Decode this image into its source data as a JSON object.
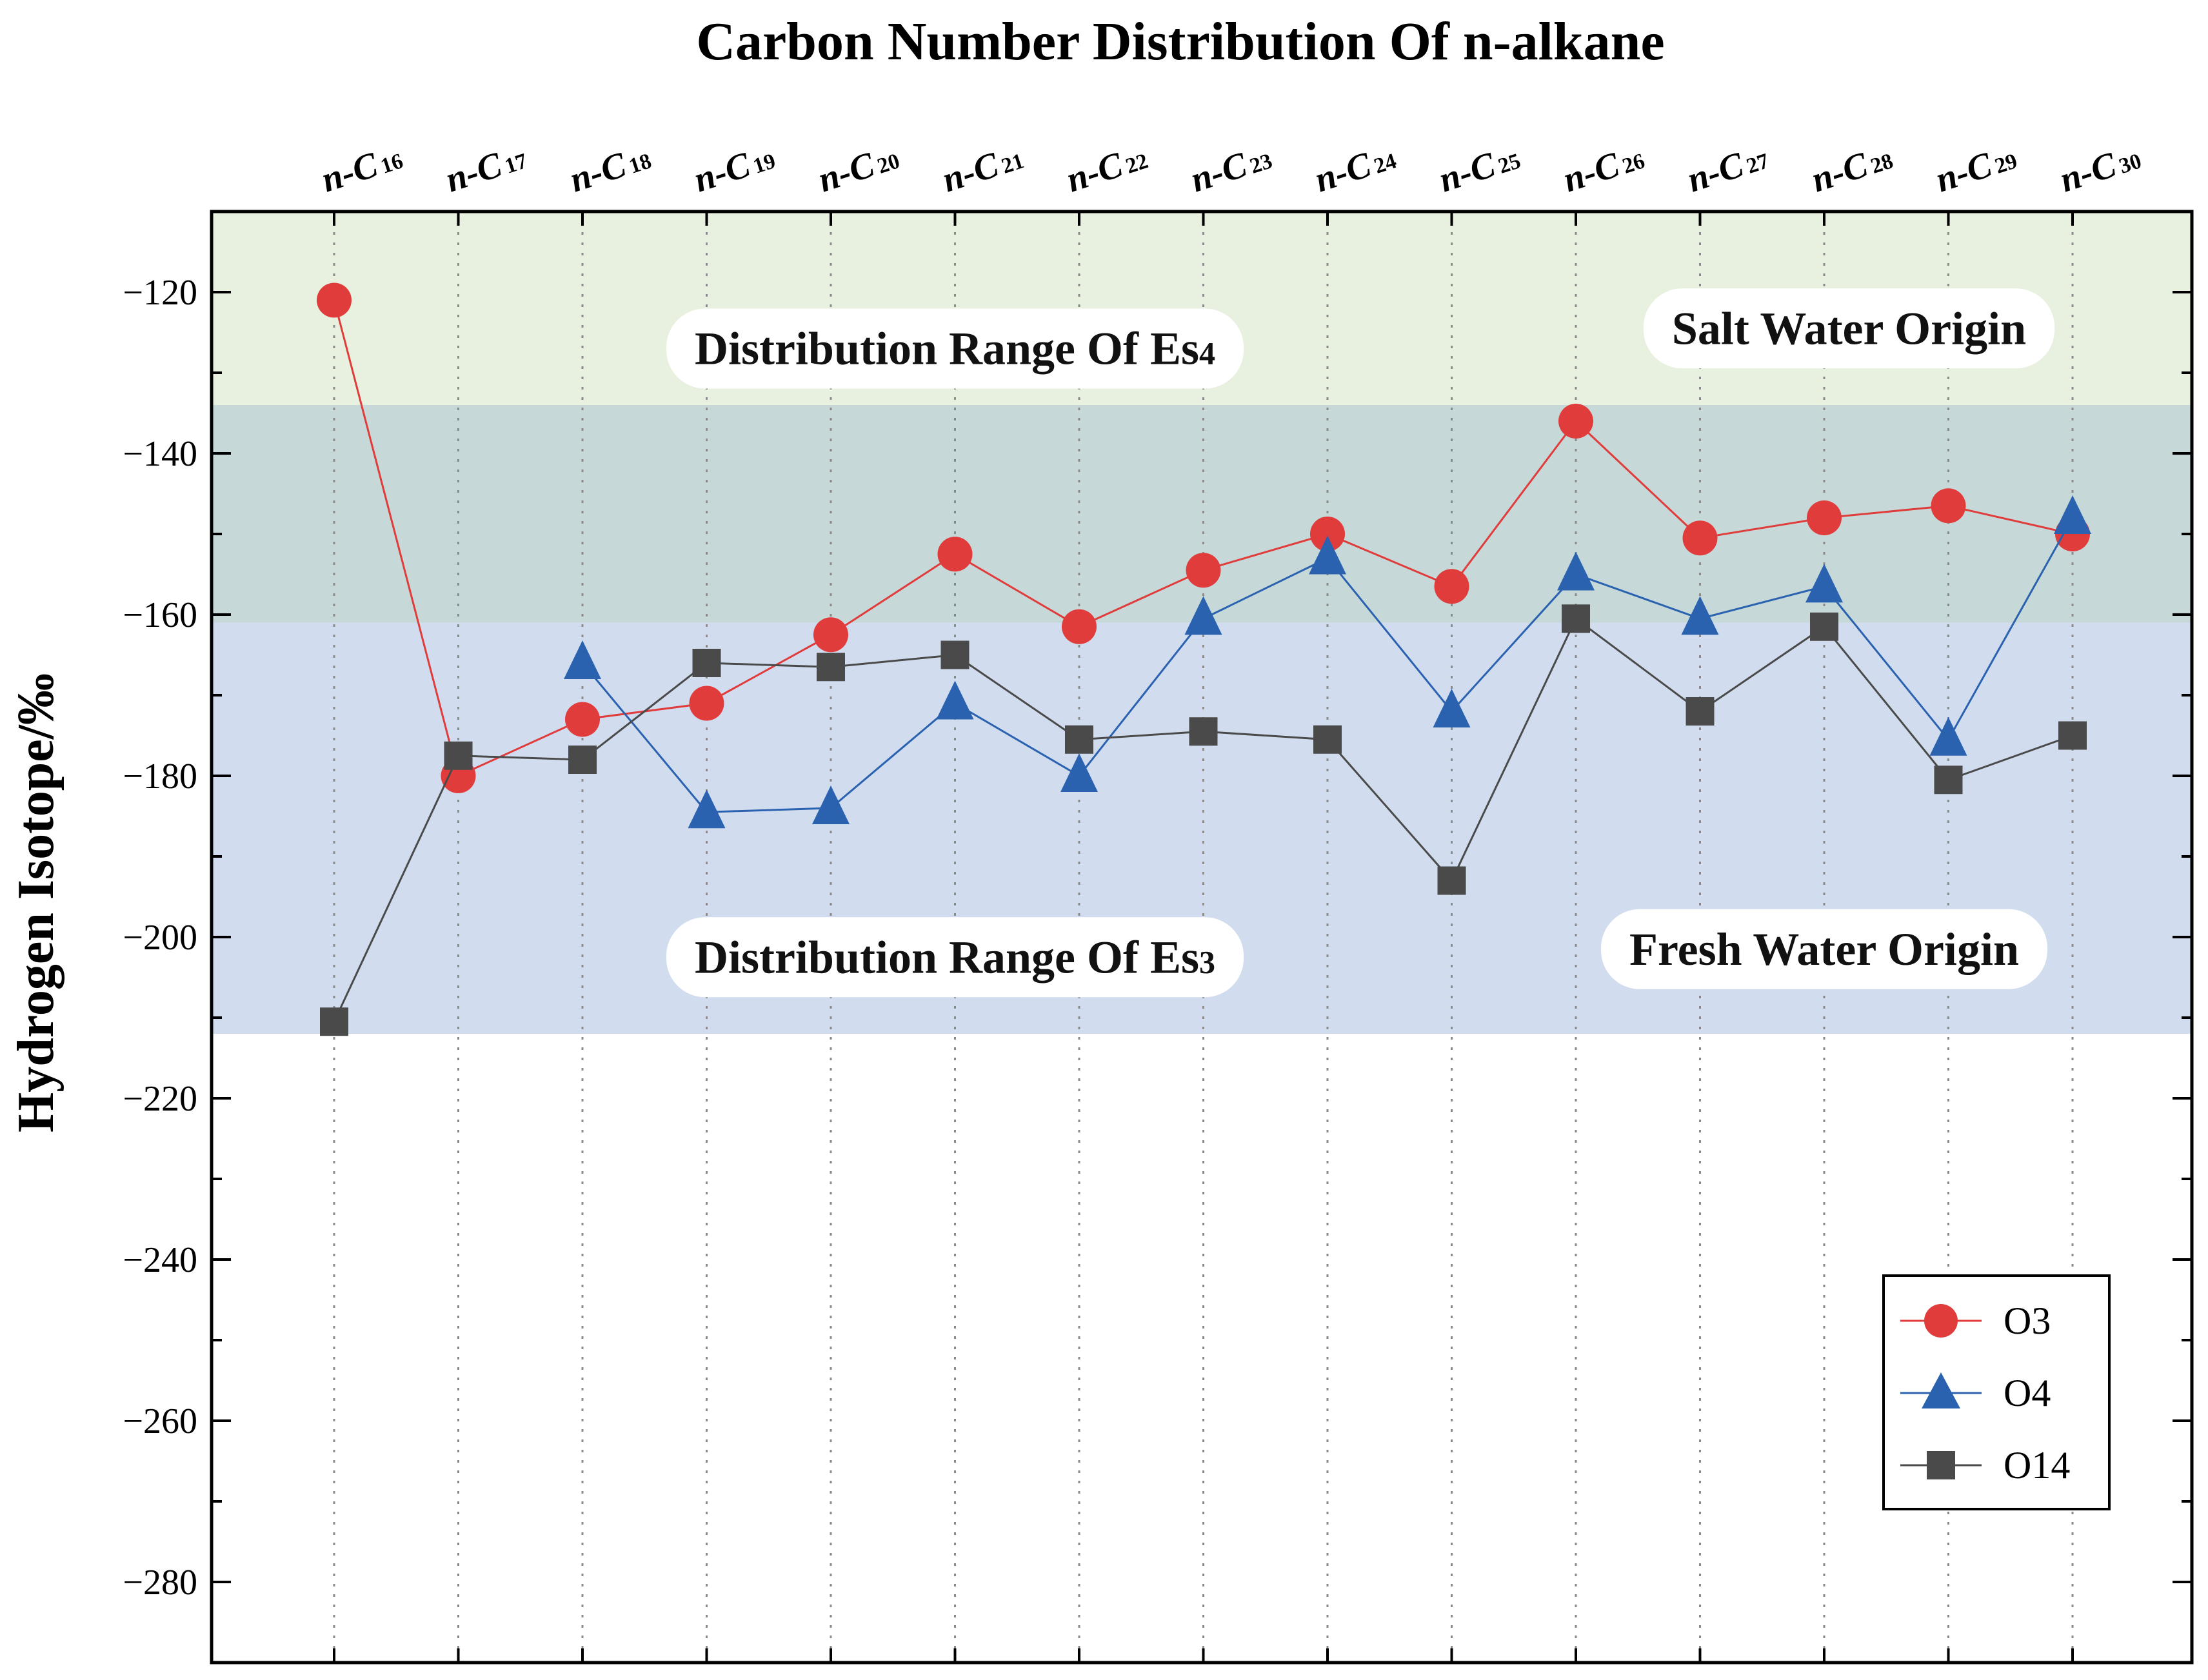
{
  "chart_data": {
    "type": "line",
    "title": "Carbon Number Distribution Of n-alkane",
    "xlabel": "",
    "ylabel": "Hydrogen Isotope/‰",
    "x_axis_position": "top",
    "categories": [
      {
        "prefix": "n-C",
        "sub": "16"
      },
      {
        "prefix": "n-C",
        "sub": "17"
      },
      {
        "prefix": "n-C",
        "sub": "18"
      },
      {
        "prefix": "n-C",
        "sub": "19"
      },
      {
        "prefix": "n-C",
        "sub": "20"
      },
      {
        "prefix": "n-C",
        "sub": "21"
      },
      {
        "prefix": "n-C",
        "sub": "22"
      },
      {
        "prefix": "n-C",
        "sub": "23"
      },
      {
        "prefix": "n-C",
        "sub": "24"
      },
      {
        "prefix": "n-C",
        "sub": "25"
      },
      {
        "prefix": "n-C",
        "sub": "26"
      },
      {
        "prefix": "n-C",
        "sub": "27"
      },
      {
        "prefix": "n-C",
        "sub": "28"
      },
      {
        "prefix": "n-C",
        "sub": "29"
      },
      {
        "prefix": "n-C",
        "sub": "30"
      }
    ],
    "ylim": [
      -290,
      -110
    ],
    "yticks": [
      -120,
      -140,
      -160,
      -180,
      -200,
      -220,
      -240,
      -260,
      -280
    ],
    "ytick_labels": [
      "−120",
      "−140",
      "−160",
      "−180",
      "−200",
      "−220",
      "−240",
      "−260",
      "−280"
    ],
    "y_minor_step": 10,
    "grid": "vertical dotted lines at each category",
    "series": [
      {
        "name": "O3",
        "marker": "circle",
        "color": "#e03c3c",
        "values": [
          -121,
          -180,
          -173,
          -171,
          -162.5,
          -152.5,
          -161.5,
          -154.5,
          -150,
          -156.5,
          -136,
          -150.5,
          -148,
          -146.5,
          -150
        ]
      },
      {
        "name": "O4",
        "marker": "triangle",
        "color": "#2a62b0",
        "values": [
          null,
          null,
          -166,
          -184.5,
          -184,
          -171,
          -180,
          -160.5,
          -153,
          -172,
          -155,
          -160.5,
          -156.5,
          -175.5,
          -148
        ]
      },
      {
        "name": "O14",
        "marker": "square",
        "color": "#4a4a4a",
        "values": [
          -210.5,
          -177.5,
          -178,
          -166,
          -166.5,
          -165,
          -175.5,
          -174.5,
          -175.5,
          -193,
          -160.5,
          -172,
          -161.5,
          -180.5,
          -175
        ]
      }
    ],
    "bands": [
      {
        "name": "salt-water-band",
        "y_range": [
          -134,
          -110
        ],
        "color": "#e8f1df"
      },
      {
        "name": "overlap-band",
        "y_range": [
          -161,
          -134
        ],
        "color": "#c6d9d8"
      },
      {
        "name": "fresh-water-band",
        "y_range": [
          -212,
          -161
        ],
        "color": "#d1ddef"
      }
    ],
    "annotations": [
      {
        "name": "es4-label",
        "text": "Distribution Range Of Es",
        "sub": "4",
        "anchor_category": 5,
        "anchor_y": -127
      },
      {
        "name": "salt-water-label",
        "text": "Salt Water Origin",
        "sub": "",
        "anchor_category": 12.2,
        "anchor_y": -124.5
      },
      {
        "name": "es3-label",
        "text": "Distribution Range Of Es",
        "sub": "3",
        "anchor_category": 5,
        "anchor_y": -202.5
      },
      {
        "name": "fresh-water-label",
        "text": "Fresh Water Origin",
        "sub": "",
        "anchor_category": 12,
        "anchor_y": -201.5
      }
    ],
    "legend": {
      "placement": "bottom-right",
      "entries": [
        "O3",
        "O4",
        "O14"
      ]
    }
  }
}
